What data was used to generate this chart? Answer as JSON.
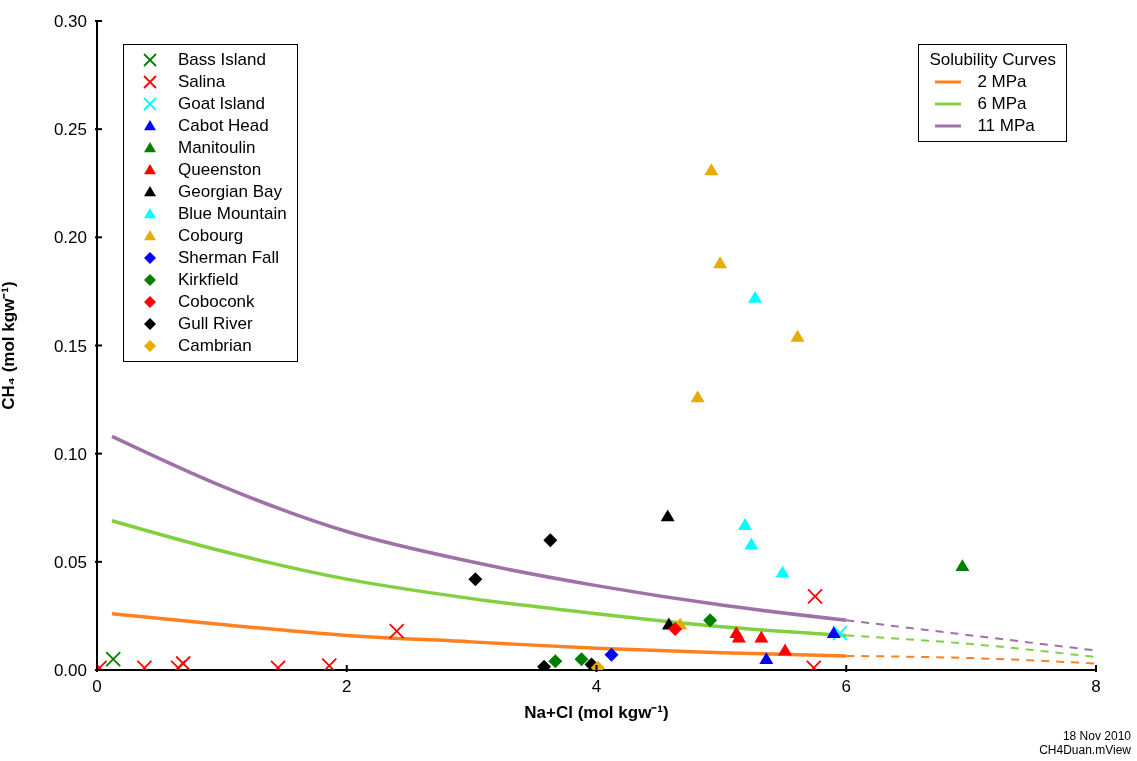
{
  "chart_data": {
    "type": "scatter",
    "xlabel": "Na+Cl (mol kgw⁻¹)",
    "ylabel": "CH₄ (mol kgw⁻¹)",
    "xlim": [
      0,
      8
    ],
    "xticks": [
      0,
      2,
      4,
      6,
      8
    ],
    "ylim": [
      0,
      0.3
    ],
    "yticks": [
      {
        "value": 0,
        "label": "0.00"
      },
      {
        "value": 0.05,
        "label": "0.05"
      },
      {
        "value": 0.1,
        "label": "0.10"
      },
      {
        "value": 0.15,
        "label": "0.15"
      },
      {
        "value": 0.2,
        "label": "0.20"
      },
      {
        "value": 0.25,
        "label": "0.25"
      },
      {
        "value": 0.3,
        "label": "0.30"
      }
    ],
    "grid": false,
    "legend": "top left",
    "legend_title": "Solubility Curves",
    "annotations": [
      "18 Nov 2010",
      "CH4Duan.mView"
    ],
    "series": [
      {
        "name": "Bass Island",
        "marker": "cross",
        "color": "#008000",
        "x": [
          0.13
        ],
        "values": [
          0.005
        ]
      },
      {
        "name": "Salina",
        "marker": "cross",
        "color": "#ff0000",
        "x": [
          0.02,
          0.38,
          0.65,
          0.69,
          1.45,
          1.86,
          2.4,
          5.75,
          5.74
        ],
        "values": [
          0.001,
          0.001,
          0.001,
          0.003,
          0.001,
          0.002,
          0.018,
          0.034,
          0.001
        ]
      },
      {
        "name": "Goat Island",
        "marker": "cross",
        "color": "#00ffff",
        "x": [
          5.95
        ],
        "values": [
          0.017
        ]
      },
      {
        "name": "Cabot Head",
        "marker": "triangle",
        "color": "#0000ff",
        "x": [
          5.36,
          5.9
        ],
        "values": [
          0.005,
          0.017
        ]
      },
      {
        "name": "Manitoulin",
        "marker": "triangle",
        "color": "#008000",
        "x": [
          6.93
        ],
        "values": [
          0.048
        ]
      },
      {
        "name": "Queenston",
        "marker": "triangle",
        "color": "#ff0000",
        "x": [
          5.12,
          5.14,
          5.32,
          5.51
        ],
        "values": [
          0.017,
          0.015,
          0.015,
          0.009
        ]
      },
      {
        "name": "Georgian Bay",
        "marker": "triangle",
        "color": "#000000",
        "x": [
          4.57,
          4.58
        ],
        "values": [
          0.071,
          0.021
        ]
      },
      {
        "name": "Blue Mountain",
        "marker": "triangle",
        "color": "#00ffff",
        "x": [
          5.27,
          5.19,
          5.24,
          5.49
        ],
        "values": [
          0.172,
          0.067,
          0.058,
          0.045
        ]
      },
      {
        "name": "Cobourg",
        "marker": "triangle",
        "color": "#e6ac00",
        "x": [
          4.92,
          4.99,
          5.61,
          4.81,
          4.67
        ],
        "values": [
          0.231,
          0.188,
          0.154,
          0.126,
          0.021
        ]
      },
      {
        "name": "Sherman Fall",
        "marker": "diamond",
        "color": "#0000ff",
        "x": [
          4.12
        ],
        "values": [
          0.007
        ]
      },
      {
        "name": "Kirkfield",
        "marker": "diamond",
        "color": "#008000",
        "x": [
          3.67,
          3.88,
          4.91
        ],
        "values": [
          0.004,
          0.005,
          0.023
        ]
      },
      {
        "name": "Coboconk",
        "marker": "diamond",
        "color": "#ff0000",
        "x": [
          4.63
        ],
        "values": [
          0.019
        ]
      },
      {
        "name": "Gull River",
        "marker": "diamond",
        "color": "#000000",
        "x": [
          3.58,
          3.03,
          3.63,
          3.96
        ],
        "values": [
          0.0015,
          0.042,
          0.06,
          0.0025
        ]
      },
      {
        "name": "Cambrian",
        "marker": "diamond",
        "color": "#e6ac00",
        "x": [
          4.01
        ],
        "values": [
          0.001
        ]
      },
      {
        "name": "2 MPa",
        "type": "line",
        "line_style": "solid",
        "color": "#ff8020",
        "x": [
          0.12,
          1,
          2,
          3,
          4,
          5,
          6
        ],
        "values": [
          0.026,
          0.021,
          0.016,
          0.013,
          0.01,
          0.008,
          0.0065
        ]
      },
      {
        "name": "6 MPa",
        "type": "line",
        "line_style": "solid",
        "color": "#80d040",
        "x": [
          0.12,
          1,
          2,
          3,
          4,
          5,
          6
        ],
        "values": [
          0.069,
          0.055,
          0.042,
          0.033,
          0.026,
          0.02,
          0.016
        ]
      },
      {
        "name": "11 MPa",
        "type": "line",
        "line_style": "solid",
        "color": "#a070a8",
        "x": [
          0.12,
          1,
          2,
          3,
          4,
          5,
          6
        ],
        "values": [
          0.108,
          0.085,
          0.064,
          0.05,
          0.039,
          0.03,
          0.023
        ]
      },
      {
        "type": "line",
        "line_style": "dashed",
        "color": "#ff8020",
        "x": [
          6,
          7,
          8
        ],
        "values": [
          0.0065,
          0.0055,
          0.003
        ]
      },
      {
        "type": "line",
        "line_style": "dashed",
        "color": "#80d040",
        "x": [
          6,
          7,
          8
        ],
        "values": [
          0.016,
          0.012,
          0.006
        ]
      },
      {
        "type": "line",
        "line_style": "dashed",
        "color": "#a070a8",
        "x": [
          6,
          7,
          8
        ],
        "values": [
          0.023,
          0.016,
          0.009
        ]
      }
    ]
  }
}
